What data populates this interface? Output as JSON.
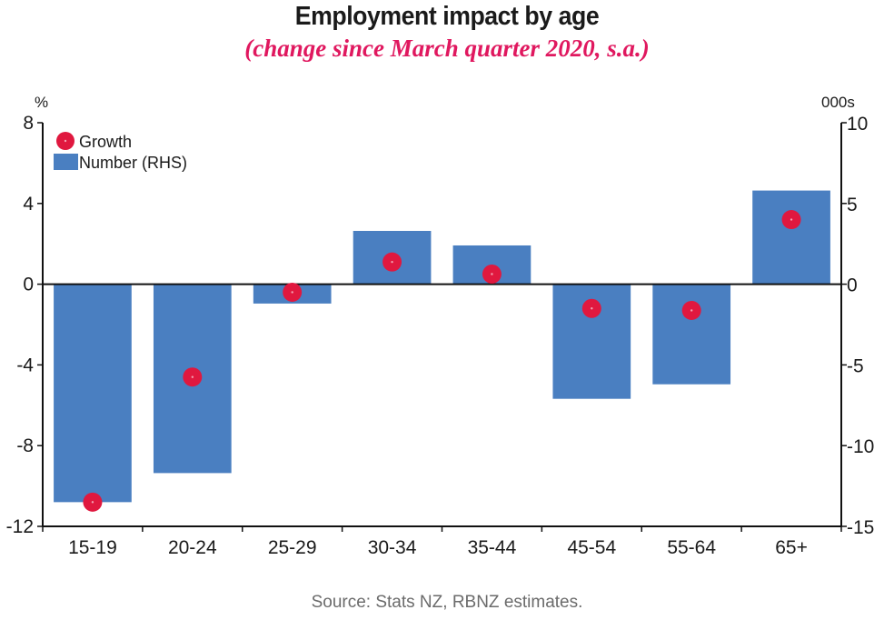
{
  "chart_data": {
    "type": "bar",
    "title": "Employment impact by age",
    "subtitle": "(change since March quarter 2020, s.a.)",
    "categories": [
      "15-19",
      "20-24",
      "25-29",
      "30-34",
      "35-44",
      "45-54",
      "55-64",
      "65+"
    ],
    "series": [
      {
        "name": "Number (RHS)",
        "type": "bar",
        "axis": "right",
        "unit": "000s",
        "color": "#4a7fc1",
        "values": [
          -13.5,
          -11.7,
          -1.2,
          3.3,
          2.4,
          -7.1,
          -6.2,
          5.8
        ]
      },
      {
        "name": "Growth",
        "type": "scatter",
        "axis": "left",
        "unit": "%",
        "color": "#e0183f",
        "values": [
          -10.8,
          -4.6,
          -0.4,
          1.1,
          0.5,
          -1.2,
          -1.3,
          3.2
        ]
      }
    ],
    "left_axis": {
      "label": "%",
      "ylim": [
        -12,
        8
      ],
      "ticks": [
        8,
        4,
        0,
        -4,
        -8,
        -12
      ]
    },
    "right_axis": {
      "label": "000s",
      "ylim": [
        -15,
        10
      ],
      "ticks": [
        10,
        5,
        0,
        -5,
        -10,
        -15
      ]
    },
    "legend": {
      "placement": "top-left",
      "entries": [
        "Growth",
        "Number (RHS)"
      ]
    },
    "grid": false,
    "source": "Source: Stats NZ, RBNZ estimates."
  }
}
